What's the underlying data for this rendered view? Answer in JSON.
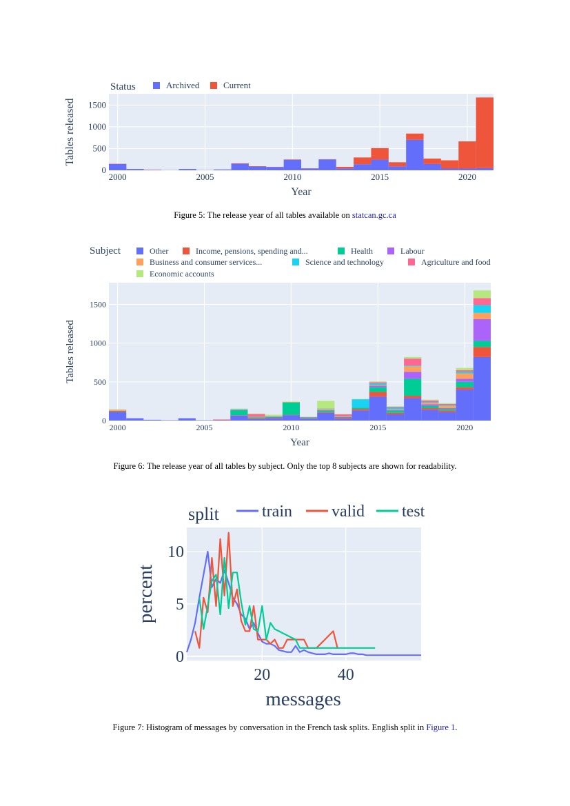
{
  "colors": {
    "Other": "#636efa",
    "Income": "#ef553b",
    "Health": "#00cc96",
    "Labour": "#ab63fa",
    "Business": "#ffa15a",
    "Science": "#19d3f3",
    "Agriculture": "#ff6692",
    "Economic": "#b6e880",
    "plot_bg": "#e5ecf6",
    "link": "#1f1fb0"
  },
  "figures": {
    "fig5": {
      "caption_text": "Figure 5: The release year of all tables available on ",
      "caption_link": "statcan.gc.ca"
    },
    "fig6": {
      "caption_text": "Figure 6: The release year of all tables by subject. Only the top 8 subjects are shown for readability."
    },
    "fig7": {
      "caption_text": "Figure 7: Histogram of messages by conversation in the French task splits. English split in ",
      "caption_link": "Figure 1",
      "caption_end": "."
    }
  },
  "chart_data": [
    {
      "id": "fig5",
      "type": "bar",
      "barmode": "stack",
      "xlabel": "Year",
      "ylabel": "Tables released",
      "legend_title": "Status",
      "legend_position": "top",
      "xlim": [
        1999.5,
        2021.5
      ],
      "ylim": [
        0,
        1760
      ],
      "xticks": [
        2000,
        2005,
        2010,
        2015,
        2020
      ],
      "yticks": [
        0,
        500,
        1000,
        1500
      ],
      "x": [
        2000,
        2001,
        2002,
        2003,
        2004,
        2005,
        2006,
        2007,
        2008,
        2009,
        2010,
        2011,
        2012,
        2013,
        2014,
        2015,
        2016,
        2017,
        2018,
        2019,
        2020,
        2021
      ],
      "series": [
        {
          "name": "Archived",
          "color": "#636efa",
          "values": [
            145,
            30,
            10,
            5,
            30,
            5,
            20,
            150,
            85,
            75,
            240,
            40,
            250,
            45,
            140,
            245,
            90,
            700,
            145,
            40,
            40,
            50
          ]
        },
        {
          "name": "Current",
          "color": "#ef553b",
          "values": [
            5,
            0,
            5,
            0,
            0,
            0,
            0,
            10,
            10,
            5,
            10,
            5,
            5,
            35,
            155,
            265,
            95,
            145,
            125,
            190,
            625,
            1625
          ]
        }
      ]
    },
    {
      "id": "fig6",
      "type": "bar",
      "barmode": "stack",
      "xlabel": "Year",
      "ylabel": "Tables released",
      "legend_title": "Subject",
      "legend_position": "top",
      "xlim": [
        1999.5,
        2021.5
      ],
      "ylim": [
        0,
        1780
      ],
      "xticks": [
        2000,
        2005,
        2010,
        2015,
        2020
      ],
      "yticks": [
        0,
        500,
        1000,
        1500
      ],
      "x": [
        2000,
        2001,
        2002,
        2003,
        2004,
        2005,
        2006,
        2007,
        2008,
        2009,
        2010,
        2011,
        2012,
        2013,
        2014,
        2015,
        2016,
        2017,
        2018,
        2019,
        2020,
        2021
      ],
      "series": [
        {
          "name": "Other",
          "color": "#636efa",
          "values": [
            110,
            30,
            10,
            5,
            30,
            5,
            5,
            65,
            20,
            30,
            70,
            25,
            100,
            25,
            130,
            310,
            80,
            290,
            140,
            110,
            400,
            820
          ]
        },
        {
          "name": "Income, pensions, spending and...",
          "color": "#ef553b",
          "values": [
            10,
            0,
            0,
            0,
            0,
            0,
            5,
            5,
            10,
            5,
            5,
            5,
            10,
            10,
            20,
            60,
            20,
            30,
            20,
            20,
            30,
            130
          ]
        },
        {
          "name": "Health",
          "color": "#00cc96",
          "values": [
            5,
            0,
            0,
            0,
            0,
            0,
            0,
            65,
            10,
            10,
            160,
            5,
            20,
            5,
            15,
            60,
            30,
            220,
            30,
            20,
            70,
            80
          ]
        },
        {
          "name": "Labour",
          "color": "#ab63fa",
          "values": [
            0,
            0,
            0,
            0,
            0,
            0,
            0,
            5,
            0,
            5,
            0,
            0,
            5,
            5,
            0,
            20,
            10,
            90,
            20,
            10,
            40,
            280
          ]
        },
        {
          "name": "Business and consumer services...",
          "color": "#ffa15a",
          "values": [
            10,
            0,
            0,
            0,
            0,
            0,
            0,
            5,
            5,
            0,
            5,
            0,
            10,
            5,
            0,
            10,
            10,
            70,
            20,
            30,
            70,
            80
          ]
        },
        {
          "name": "Science and technology",
          "color": "#19d3f3",
          "values": [
            0,
            0,
            0,
            0,
            0,
            0,
            0,
            5,
            5,
            0,
            0,
            5,
            5,
            5,
            110,
            20,
            20,
            10,
            10,
            10,
            20,
            100
          ]
        },
        {
          "name": "Agriculture and food",
          "color": "#ff6692",
          "values": [
            5,
            0,
            0,
            0,
            0,
            0,
            5,
            0,
            35,
            5,
            0,
            5,
            5,
            25,
            0,
            15,
            10,
            90,
            20,
            15,
            20,
            90
          ]
        },
        {
          "name": "Economic accounts",
          "color": "#b6e880",
          "values": [
            5,
            0,
            0,
            0,
            0,
            0,
            0,
            5,
            5,
            20,
            5,
            5,
            100,
            5,
            5,
            10,
            5,
            20,
            10,
            10,
            30,
            100
          ]
        }
      ]
    },
    {
      "id": "fig7",
      "type": "line",
      "xlabel": "messages",
      "ylabel": "percent",
      "legend_title": "split",
      "legend_position": "top",
      "xlim": [
        2,
        58
      ],
      "ylim": [
        -0.4,
        12.3
      ],
      "xticks": [
        20,
        40
      ],
      "yticks": [
        0,
        5,
        10
      ],
      "series": [
        {
          "name": "train",
          "color": "#636efa",
          "x": [
            2,
            3,
            4,
            5,
            6,
            7,
            8,
            9,
            10,
            11,
            12,
            13,
            14,
            15,
            16,
            17,
            18,
            19,
            20,
            21,
            22,
            23,
            24,
            25,
            26,
            27,
            28,
            29,
            30,
            31,
            32,
            33,
            34,
            35,
            36,
            37,
            38,
            39,
            40,
            41,
            42,
            43,
            44,
            45,
            46,
            47,
            48,
            50,
            52,
            54,
            56,
            58
          ],
          "values": [
            0.4,
            1.6,
            3.2,
            5.6,
            7.8,
            10.0,
            6.6,
            7.4,
            7.0,
            8.2,
            7.0,
            5.6,
            5.0,
            4.0,
            3.6,
            2.6,
            3.2,
            2.2,
            1.4,
            1.2,
            1.2,
            1.0,
            0.6,
            0.5,
            0.4,
            0.4,
            1.0,
            0.4,
            0.6,
            0.4,
            0.3,
            0.2,
            0.2,
            0.2,
            0.3,
            0.2,
            0.2,
            0.2,
            0.2,
            0.3,
            0.3,
            0.2,
            0.2,
            0.1,
            0.1,
            0.1,
            0.1,
            0.1,
            0.1,
            0.1,
            0.1,
            0.1
          ]
        },
        {
          "name": "valid",
          "color": "#ef553b",
          "x": [
            4,
            5,
            6,
            7,
            8,
            9,
            10,
            11,
            12,
            13,
            14,
            15,
            16,
            17,
            18,
            19,
            20,
            21,
            22,
            23,
            24,
            25,
            26,
            27,
            28,
            29,
            30,
            31,
            32,
            33,
            34,
            35,
            36,
            37,
            38
          ],
          "values": [
            2.4,
            0.8,
            5.6,
            4.2,
            9.4,
            4.8,
            11.2,
            5.8,
            11.8,
            4.8,
            6.4,
            3.4,
            2.4,
            2.4,
            4.8,
            1.6,
            1.6,
            1.6,
            1.2,
            1.6,
            0.8,
            0.8,
            1.6,
            1.6,
            1.6,
            1.6,
            1.6,
            0.8,
            0.8,
            0.8,
            1.2,
            1.6,
            2.0,
            2.4,
            0.8
          ]
        },
        {
          "name": "test",
          "color": "#00cc96",
          "x": [
            5,
            6,
            7,
            8,
            9,
            10,
            11,
            12,
            13,
            14,
            15,
            16,
            17,
            18,
            19,
            20,
            21,
            22,
            23,
            24,
            25,
            26,
            27,
            28,
            29,
            30,
            32,
            34,
            36,
            38,
            40,
            42,
            44,
            46,
            47
          ],
          "values": [
            5.6,
            2.6,
            4.8,
            7.2,
            7.8,
            4.0,
            9.4,
            4.6,
            8.0,
            8.0,
            5.2,
            3.0,
            4.8,
            2.6,
            2.4,
            4.8,
            1.6,
            3.2,
            2.6,
            2.4,
            2.2,
            2.0,
            1.8,
            1.6,
            0.8,
            0.8,
            0.8,
            0.8,
            0.8,
            0.8,
            0.8,
            0.8,
            0.8,
            0.8,
            0.8
          ]
        }
      ]
    }
  ]
}
